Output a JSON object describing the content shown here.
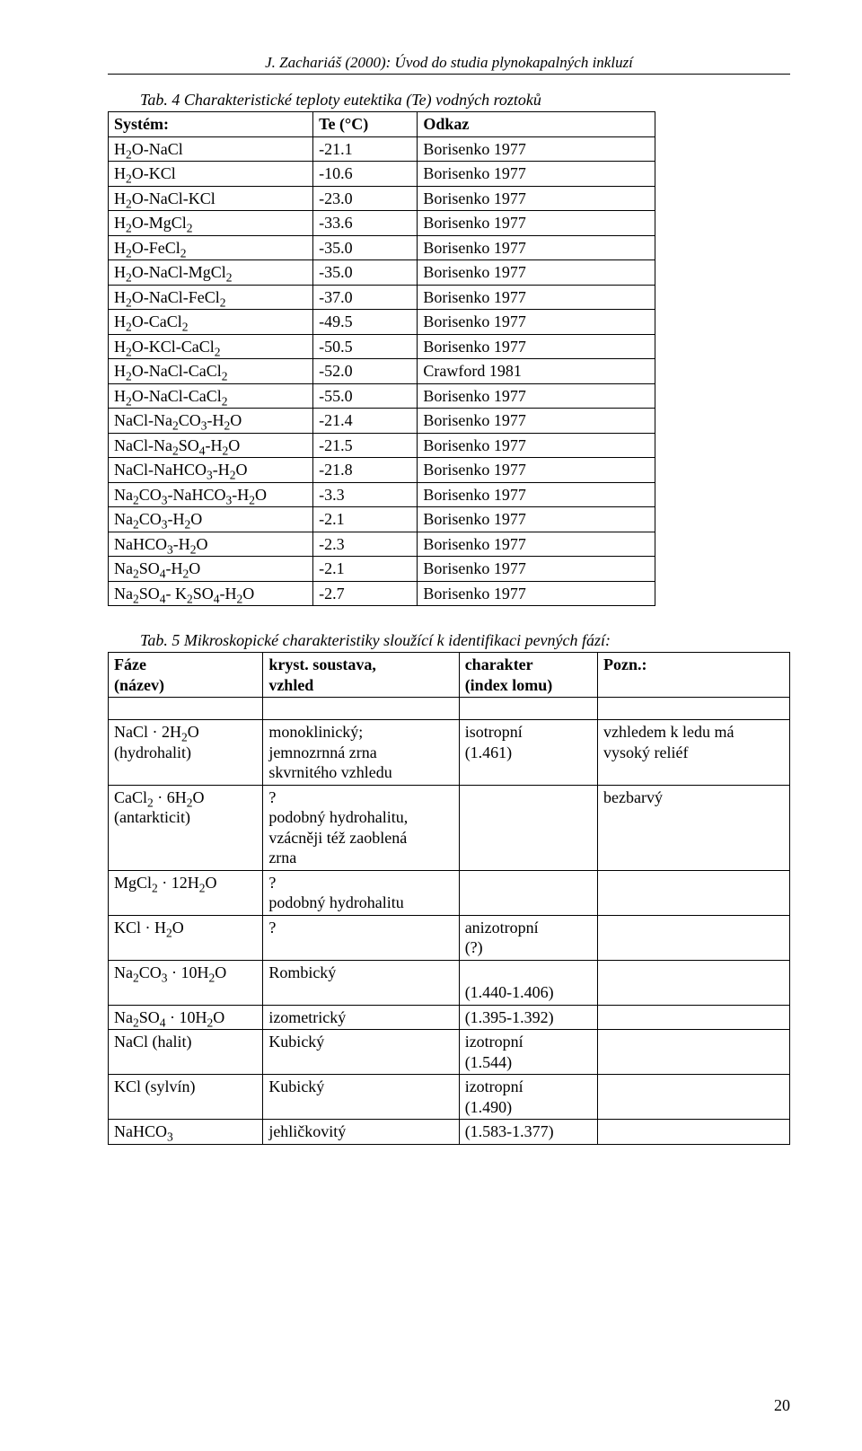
{
  "header": "J. Zachariáš (2000): Úvod do studia plynokapalných inkluzí",
  "table4": {
    "caption": "Tab. 4 Charakteristické teploty eutektika (Te) vodných roztoků",
    "headers": [
      "Systém:",
      "Te (°C)",
      "Odkaz"
    ],
    "rows": [
      [
        "H₂O-NaCl",
        "-21.1",
        "Borisenko 1977"
      ],
      [
        "H₂O-KCl",
        "-10.6",
        "Borisenko 1977"
      ],
      [
        "H₂O-NaCl-KCl",
        "-23.0",
        "Borisenko 1977"
      ],
      [
        "H₂O-MgCl₂",
        "-33.6",
        "Borisenko 1977"
      ],
      [
        "H₂O-FeCl₂",
        "-35.0",
        "Borisenko 1977"
      ],
      [
        "H₂O-NaCl-MgCl₂",
        "-35.0",
        "Borisenko 1977"
      ],
      [
        "H₂O-NaCl-FeCl₂",
        "-37.0",
        "Borisenko 1977"
      ],
      [
        "H₂O-CaCl₂",
        "-49.5",
        "Borisenko 1977"
      ],
      [
        "H₂O-KCl-CaCl₂",
        "-50.5",
        "Borisenko 1977"
      ],
      [
        "H₂O-NaCl-CaCl₂",
        "-52.0",
        "Crawford 1981"
      ],
      [
        "H₂O-NaCl-CaCl₂",
        "-55.0",
        "Borisenko 1977"
      ],
      [
        "NaCl-Na₂CO₃-H₂O",
        "-21.4",
        "Borisenko 1977"
      ],
      [
        "NaCl-Na₂SO₄-H₂O",
        "-21.5",
        "Borisenko 1977"
      ],
      [
        "NaCl-NaHCO₃-H₂O",
        "-21.8",
        "Borisenko 1977"
      ],
      [
        "Na₂CO₃-NaHCO₃-H₂O",
        "-3.3",
        "Borisenko 1977"
      ],
      [
        "Na₂CO₃-H₂O",
        "-2.1",
        "Borisenko 1977"
      ],
      [
        "NaHCO₃-H₂O",
        "-2.3",
        "Borisenko 1977"
      ],
      [
        "Na₂SO₄-H₂O",
        "-2.1",
        "Borisenko 1977"
      ],
      [
        "Na₂SO₄- K₂SO₄-H₂O",
        "-2.7",
        "Borisenko 1977"
      ]
    ]
  },
  "table5": {
    "caption": "Tab. 5 Mikroskopické charakteristiky sloužící k identifikaci pevných fází:",
    "headers": [
      "Fáze\n(název)",
      "kryst. soustava,\nvzhled",
      "charakter\n(index lomu)",
      "Pozn.:"
    ],
    "rows": [
      [
        "NaCl · 2H₂O\n(hydrohalit)",
        "monoklinický;\njemnozrnná zrna\nskvrnitého vzhledu",
        "isotropní\n(1.461)",
        "vzhledem k ledu má\nvysoký reliéf"
      ],
      [
        "CaCl₂ · 6H₂O\n(antarkticit)",
        "?\npodobný hydrohalitu,\nvzácněji též zaoblená\nzrna",
        "",
        "bezbarvý"
      ],
      [
        "MgCl₂ · 12H₂O",
        "?\npodobný hydrohalitu",
        "",
        ""
      ],
      [
        "KCl · H₂O",
        "?",
        "anizotropní\n(?)",
        ""
      ],
      [
        "Na₂CO₃ · 10H₂O",
        "Rombický",
        "\n(1.440-1.406)",
        ""
      ],
      [
        "Na₂SO₄ · 10H₂O",
        "izometrický",
        "(1.395-1.392)",
        ""
      ],
      [
        "NaCl (halit)",
        "Kubický",
        "izotropní\n(1.544)",
        ""
      ],
      [
        "KCl (sylvín)",
        "Kubický",
        "izotropní\n(1.490)",
        ""
      ],
      [
        "NaHCO₃",
        "jehličkovitý",
        "(1.583-1.377)",
        ""
      ]
    ]
  },
  "pageNumber": "20"
}
